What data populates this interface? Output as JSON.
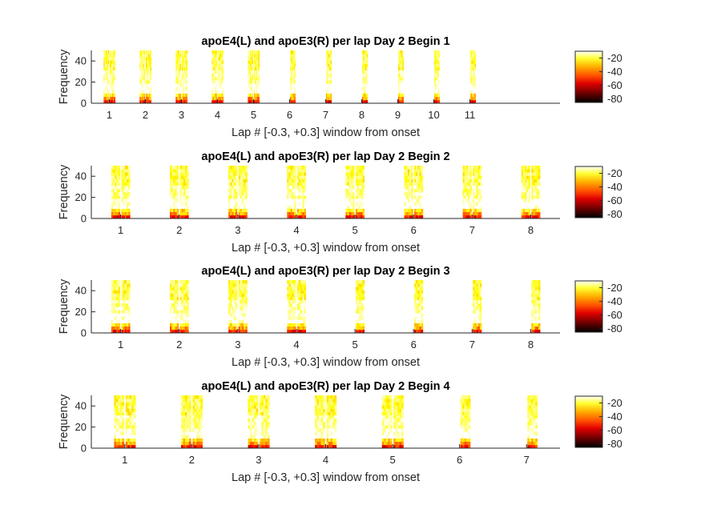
{
  "chart_data": [
    {
      "type": "heatmap",
      "title": "apoE4(L) and apoE3(R) per lap Day 2 Begin 1",
      "xlabel": "Lap # [-0.3, +0.3] window from onset",
      "ylabel": "Frequency",
      "laps": [
        "1",
        "2",
        "3",
        "4",
        "5",
        "6",
        "7",
        "8",
        "9",
        "10",
        "11"
      ],
      "present": [
        [
          true,
          true
        ],
        [
          true,
          true
        ],
        [
          true,
          true
        ],
        [
          true,
          true
        ],
        [
          true,
          true
        ],
        [
          false,
          true
        ],
        [
          false,
          true
        ],
        [
          false,
          true
        ],
        [
          false,
          true
        ],
        [
          false,
          true
        ],
        [
          false,
          true
        ]
      ],
      "ylim": [
        0,
        50
      ],
      "yticks": [
        0,
        20,
        40
      ],
      "xlim": [
        0.5,
        13.5
      ],
      "clim": [
        -85,
        -10
      ],
      "colorbar_ticks": [
        -20,
        -40,
        -60,
        -80
      ],
      "colormap": "hot",
      "grid": false
    },
    {
      "type": "heatmap",
      "title": "apoE4(L) and apoE3(R) per lap Day 2 Begin 2",
      "xlabel": "Lap # [-0.3, +0.3] window from onset",
      "ylabel": "Frequency",
      "laps": [
        "1",
        "2",
        "3",
        "4",
        "5",
        "6",
        "7",
        "8"
      ],
      "present": [
        [
          true,
          true
        ],
        [
          true,
          true
        ],
        [
          true,
          true
        ],
        [
          true,
          true
        ],
        [
          true,
          true
        ],
        [
          true,
          true
        ],
        [
          true,
          true
        ],
        [
          true,
          true
        ]
      ],
      "ylim": [
        0,
        50
      ],
      "yticks": [
        0,
        20,
        40
      ],
      "xlim": [
        0.5,
        8.5
      ],
      "clim": [
        -85,
        -10
      ],
      "colorbar_ticks": [
        -20,
        -40,
        -60,
        -80
      ],
      "colormap": "hot",
      "grid": false
    },
    {
      "type": "heatmap",
      "title": "apoE4(L) and apoE3(R) per lap Day 2 Begin 3",
      "xlabel": "Lap # [-0.3, +0.3] window from onset",
      "ylabel": "Frequency",
      "laps": [
        "1",
        "2",
        "3",
        "4",
        "5",
        "6",
        "7",
        "8"
      ],
      "present": [
        [
          true,
          true
        ],
        [
          true,
          true
        ],
        [
          true,
          true
        ],
        [
          true,
          true
        ],
        [
          false,
          true
        ],
        [
          false,
          true
        ],
        [
          false,
          true
        ],
        [
          false,
          true
        ]
      ],
      "ylim": [
        0,
        50
      ],
      "yticks": [
        0,
        20,
        40
      ],
      "xlim": [
        0.5,
        8.5
      ],
      "clim": [
        -85,
        -10
      ],
      "colorbar_ticks": [
        -20,
        -40,
        -60,
        -80
      ],
      "colormap": "hot",
      "grid": false
    },
    {
      "type": "heatmap",
      "title": "apoE4(L) and apoE3(R) per lap Day 2 Begin 4",
      "xlabel": "Lap # [-0.3, +0.3] window from onset",
      "ylabel": "Frequency",
      "laps": [
        "1",
        "2",
        "3",
        "4",
        "5",
        "6",
        "7"
      ],
      "present": [
        [
          true,
          true
        ],
        [
          true,
          true
        ],
        [
          true,
          true
        ],
        [
          true,
          true
        ],
        [
          true,
          true
        ],
        [
          false,
          true
        ],
        [
          false,
          true
        ]
      ],
      "ylim": [
        0,
        50
      ],
      "yticks": [
        0,
        20,
        40
      ],
      "xlim": [
        0.5,
        7.5
      ],
      "clim": [
        -85,
        -10
      ],
      "colorbar_ticks": [
        -20,
        -40,
        -60,
        -80
      ],
      "colormap": "hot",
      "grid": false
    }
  ]
}
